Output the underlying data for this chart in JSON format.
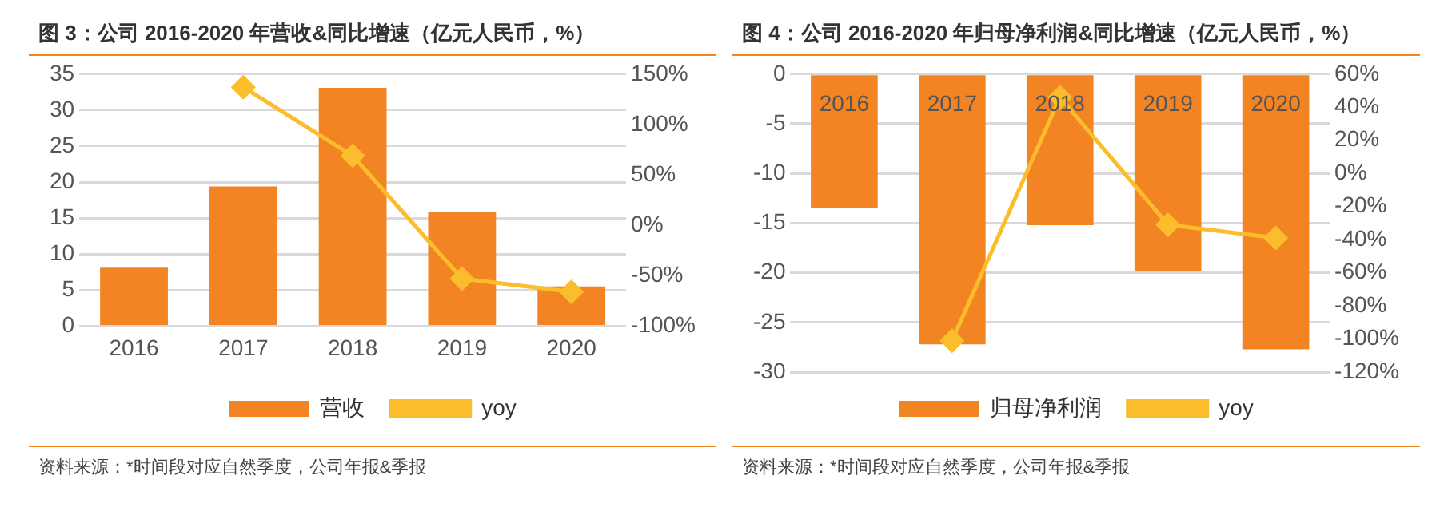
{
  "chart_data": [
    {
      "type": "bar",
      "title": "图 3：公司 2016-2020 年营收&同比增速（亿元人民币，%）",
      "categories": [
        "2016",
        "2017",
        "2018",
        "2019",
        "2020"
      ],
      "series": [
        {
          "name": "营收",
          "color": "#f28424",
          "values": [
            8.1,
            19.4,
            33.1,
            15.8,
            5.5
          ]
        },
        {
          "name": "yoy",
          "type": "line",
          "axis": "y2",
          "color": "#fbbd2c",
          "values": [
            null,
            137,
            69,
            -53,
            -66
          ]
        }
      ],
      "ylim": [
        0,
        35
      ],
      "yticks": [
        0,
        5,
        10,
        15,
        20,
        25,
        30,
        35
      ],
      "y2lim": [
        -100,
        150
      ],
      "y2ticks": [
        {
          "value": -100,
          "label": "-100%"
        },
        {
          "value": -50,
          "label": "-50%"
        },
        {
          "value": 0,
          "label": "0%"
        },
        {
          "value": 50,
          "label": "50%"
        },
        {
          "value": 100,
          "label": "100%"
        },
        {
          "value": 150,
          "label": "150%"
        }
      ],
      "grid": "y",
      "legend": "bottom",
      "marker": "diamond",
      "annotations": [
        "资料来源：*时间段对应自然季度，公司年报&季报"
      ]
    },
    {
      "type": "bar",
      "title": "图 4：公司 2016-2020 年归母净利润&同比增速（亿元人民币，%）",
      "categories": [
        "2016",
        "2017",
        "2018",
        "2019",
        "2020"
      ],
      "series": [
        {
          "name": "归母净利润",
          "color": "#f28424",
          "values": [
            -13.5,
            -27.2,
            -15.2,
            -19.8,
            -27.7
          ]
        },
        {
          "name": "yoy",
          "type": "line",
          "axis": "y2",
          "color": "#fbbd2c",
          "values": [
            null,
            -101,
            46,
            -31,
            -39
          ]
        }
      ],
      "ylim": [
        -30,
        0
      ],
      "yticks": [
        -30,
        -25,
        -20,
        -15,
        -10,
        -5,
        0
      ],
      "y2lim": [
        -120,
        60
      ],
      "y2ticks": [
        {
          "value": -120,
          "label": "-120%"
        },
        {
          "value": -100,
          "label": "-100%"
        },
        {
          "value": -80,
          "label": "-80%"
        },
        {
          "value": -60,
          "label": "-60%"
        },
        {
          "value": -40,
          "label": "-40%"
        },
        {
          "value": -20,
          "label": "-20%"
        },
        {
          "value": 0,
          "label": "0%"
        },
        {
          "value": 20,
          "label": "20%"
        },
        {
          "value": 40,
          "label": "40%"
        },
        {
          "value": 60,
          "label": "60%"
        }
      ],
      "grid": "y",
      "legend": "bottom",
      "marker": "diamond",
      "annotations": [
        "资料来源：*时间段对应自然季度，公司年报&季报"
      ]
    }
  ]
}
